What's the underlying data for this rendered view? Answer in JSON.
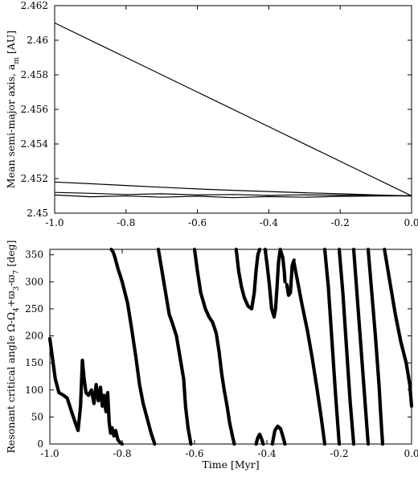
{
  "chart_data": [
    {
      "type": "line",
      "title": "",
      "xlabel": "",
      "ylabel": "Mean semi-major axis, a",
      "ylabel_sub": "m",
      "ylabel_unit": " [AU]",
      "xlim": [
        -1.0,
        0.0
      ],
      "ylim": [
        2.45,
        2.462
      ],
      "x_ticks": [
        -1.0,
        -0.8,
        -0.6,
        -0.4,
        -0.2,
        0.0
      ],
      "x_tick_labels": [
        "-1.0",
        "-0.8",
        "-0.6",
        "-0.4",
        "-0.2",
        "0.0"
      ],
      "y_ticks": [
        2.45,
        2.452,
        2.454,
        2.456,
        2.458,
        2.46,
        2.462
      ],
      "y_tick_labels": [
        "2.45",
        "2.452",
        "2.454",
        "2.456",
        "2.458",
        "2.46",
        "2.462"
      ],
      "grid": false,
      "series": [
        {
          "x": [
            -1.0,
            -0.8,
            -0.6,
            -0.4,
            -0.2,
            0.0
          ],
          "y": [
            2.461,
            2.459,
            2.457,
            2.455,
            2.453,
            2.451
          ]
        },
        {
          "x": [
            -1.0,
            -0.9,
            -0.8,
            -0.7,
            -0.6,
            -0.5,
            -0.4,
            -0.3,
            -0.2,
            -0.1,
            0.0
          ],
          "y": [
            2.4518,
            2.4517,
            2.4516,
            2.4515,
            2.4514,
            2.45132,
            2.45125,
            2.45118,
            2.45112,
            2.45105,
            2.451
          ]
        },
        {
          "x": [
            -1.0,
            -0.9,
            -0.8,
            -0.7,
            -0.6,
            -0.5,
            -0.4,
            -0.3,
            -0.2,
            -0.1,
            0.0
          ],
          "y": [
            2.4512,
            2.45115,
            2.45108,
            2.45112,
            2.45105,
            2.45108,
            2.45103,
            2.45106,
            2.45104,
            2.45102,
            2.451
          ]
        },
        {
          "x": [
            -1.0,
            -0.9,
            -0.8,
            -0.7,
            -0.6,
            -0.5,
            -0.4,
            -0.3,
            -0.2,
            -0.1,
            0.0
          ],
          "y": [
            2.45105,
            2.45095,
            2.451,
            2.45092,
            2.45098,
            2.4509,
            2.45096,
            2.45092,
            2.45097,
            2.45099,
            2.451
          ]
        }
      ]
    },
    {
      "type": "scatter",
      "title": "",
      "xlabel": "Time [Myr]",
      "ylabel": "Resonant critical angle Ω-Ω",
      "ylabel_parts": [
        "Resonant critical angle Ω-Ω",
        "4",
        "+ϖ",
        "3",
        "-ϖ",
        "7",
        " [deg]"
      ],
      "xlim": [
        -1.0,
        0.0
      ],
      "ylim": [
        0,
        360
      ],
      "x_ticks": [
        -1.0,
        -0.8,
        -0.6,
        -0.4,
        -0.2,
        0.0
      ],
      "x_tick_labels": [
        "-1.0",
        "-0.8",
        "-0.6",
        "-0.4",
        "-0.2",
        "0.0"
      ],
      "y_ticks": [
        0,
        50,
        100,
        150,
        200,
        250,
        300,
        350
      ],
      "y_tick_labels": [
        "0",
        "50",
        "100",
        "150",
        "200",
        "250",
        "300",
        "350"
      ],
      "grid": false,
      "series": [
        {
          "x": [
            -1.0,
            -0.985,
            -0.975,
            -0.962,
            -0.952,
            -0.94,
            -0.93,
            -0.922,
            -0.915,
            -0.91,
            -0.905,
            -0.9,
            -0.893,
            -0.885,
            -0.878,
            -0.872,
            -0.866,
            -0.86,
            -0.855,
            -0.85,
            -0.845,
            -0.84,
            -0.836,
            -0.832,
            -0.828,
            -0.823,
            -0.818,
            -0.812,
            -0.806,
            -0.8
          ],
          "y": [
            195,
            120,
            95,
            90,
            85,
            60,
            40,
            25,
            70,
            155,
            120,
            95,
            90,
            100,
            75,
            110,
            80,
            105,
            70,
            90,
            60,
            95,
            40,
            20,
            30,
            15,
            25,
            8,
            3,
            0
          ]
        },
        {
          "x": [
            -0.83,
            -0.825,
            -0.82,
            -0.812,
            -0.8,
            -0.785,
            -0.773,
            -0.762,
            -0.752,
            -0.742,
            -0.732,
            -0.72,
            -0.71
          ],
          "y": [
            360,
            355,
            345,
            325,
            300,
            260,
            210,
            160,
            110,
            75,
            50,
            20,
            0
          ]
        },
        {
          "x": [
            -0.7,
            -0.69,
            -0.68,
            -0.67,
            -0.662,
            -0.65,
            -0.64,
            -0.63,
            -0.625,
            -0.618,
            -0.61
          ],
          "y": [
            360,
            320,
            280,
            240,
            225,
            200,
            160,
            120,
            70,
            30,
            0
          ]
        },
        {
          "x": [
            -0.6,
            -0.592,
            -0.583,
            -0.57,
            -0.56,
            -0.55,
            -0.54,
            -0.532,
            -0.525,
            -0.518,
            -0.51,
            -0.503,
            -0.497,
            -0.49
          ],
          "y": [
            360,
            320,
            280,
            250,
            235,
            225,
            205,
            170,
            130,
            100,
            70,
            40,
            20,
            0
          ]
        },
        {
          "x": [
            -0.485,
            -0.478,
            -0.47,
            -0.462,
            -0.452,
            -0.442,
            -0.435,
            -0.43,
            -0.425,
            -0.42
          ],
          "y": [
            360,
            320,
            290,
            270,
            255,
            250,
            280,
            320,
            350,
            360
          ]
        },
        {
          "x": [
            -0.43,
            -0.425,
            -0.42,
            -0.415,
            -0.41
          ],
          "y": [
            0,
            12,
            18,
            10,
            0
          ]
        },
        {
          "x": [
            -0.405,
            -0.4,
            -0.393,
            -0.387,
            -0.38,
            -0.376,
            -0.372,
            -0.368,
            -0.363,
            -0.356,
            -0.352,
            -0.35
          ],
          "y": [
            360,
            335,
            295,
            250,
            235,
            250,
            290,
            335,
            360,
            345,
            320,
            300
          ]
        },
        {
          "x": [
            -0.385,
            -0.378,
            -0.37,
            -0.362,
            -0.355,
            -0.35
          ],
          "y": [
            0,
            25,
            33,
            28,
            12,
            0
          ]
        },
        {
          "x": [
            -0.345,
            -0.34,
            -0.335,
            -0.33,
            -0.325
          ],
          "y": [
            295,
            275,
            280,
            330,
            340
          ]
        },
        {
          "x": [
            -0.325,
            -0.315,
            -0.302,
            -0.288,
            -0.275,
            -0.262,
            -0.25,
            -0.24
          ],
          "y": [
            335,
            300,
            255,
            210,
            160,
            105,
            50,
            0
          ]
        },
        {
          "x": [
            -0.24,
            -0.23,
            -0.22,
            -0.21,
            -0.2
          ],
          "y": [
            360,
            290,
            190,
            90,
            0
          ]
        },
        {
          "x": [
            -0.2,
            -0.19,
            -0.18,
            -0.17,
            -0.16
          ],
          "y": [
            360,
            280,
            180,
            80,
            0
          ]
        },
        {
          "x": [
            -0.16,
            -0.15,
            -0.14,
            -0.13,
            -0.12
          ],
          "y": [
            360,
            270,
            180,
            90,
            0
          ]
        },
        {
          "x": [
            -0.12,
            -0.11,
            -0.1,
            -0.09,
            -0.085,
            -0.08
          ],
          "y": [
            360,
            280,
            200,
            110,
            50,
            0
          ]
        },
        {
          "x": [
            -0.075,
            -0.06,
            -0.045,
            -0.03,
            -0.015,
            -0.005,
            0.0
          ],
          "y": [
            360,
            300,
            240,
            190,
            150,
            110,
            70
          ]
        }
      ]
    }
  ]
}
